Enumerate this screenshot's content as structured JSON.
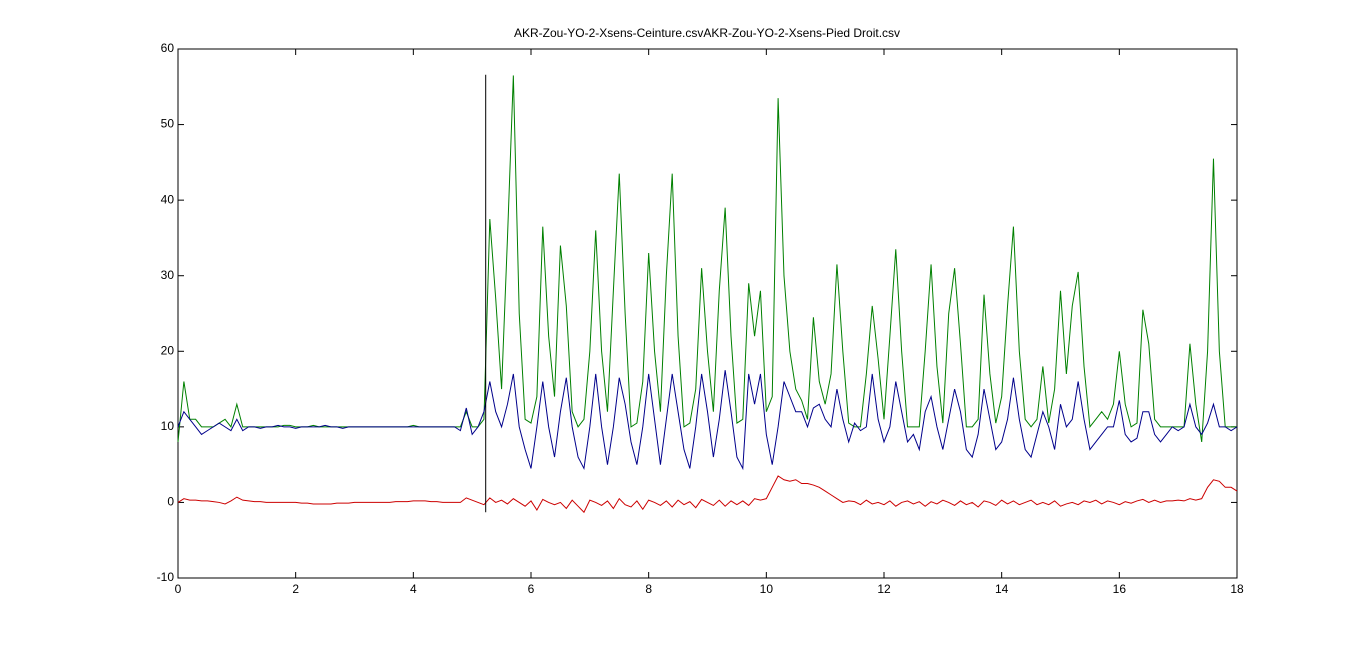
{
  "chart_data": {
    "type": "line",
    "title": "AKR-Zou-YO-2-Xsens-Ceinture.csvAKR-Zou-YO-2-Xsens-Pied Droit.csv",
    "xlim": [
      0,
      18
    ],
    "xticks": [
      0,
      2,
      4,
      6,
      8,
      10,
      12,
      14,
      16,
      18
    ],
    "ylim": [
      -10,
      60
    ],
    "yticks": [
      -10,
      0,
      10,
      20,
      30,
      40,
      50,
      60
    ],
    "grid": false,
    "vertical_line": {
      "x": 5.23,
      "y": [
        -1.3,
        56.6
      ]
    },
    "x": [
      0,
      0.1,
      0.2,
      0.3,
      0.4,
      0.5,
      0.6,
      0.7,
      0.8,
      0.9,
      1,
      1.1,
      1.2,
      1.3,
      1.4,
      1.5,
      1.6,
      1.7,
      1.8,
      1.9,
      2,
      2.1,
      2.2,
      2.3,
      2.4,
      2.5,
      2.6,
      2.7,
      2.8,
      2.9,
      3,
      3.1,
      3.2,
      3.3,
      3.4,
      3.5,
      3.6,
      3.7,
      3.8,
      3.9,
      4,
      4.1,
      4.2,
      4.3,
      4.4,
      4.5,
      4.6,
      4.7,
      4.8,
      4.9,
      5,
      5.1,
      5.2,
      5.3,
      5.4,
      5.5,
      5.6,
      5.7,
      5.8,
      5.9,
      6,
      6.1,
      6.2,
      6.3,
      6.4,
      6.5,
      6.6,
      6.7,
      6.8,
      6.9,
      7,
      7.1,
      7.2,
      7.3,
      7.4,
      7.5,
      7.6,
      7.7,
      7.8,
      7.9,
      8,
      8.1,
      8.2,
      8.3,
      8.4,
      8.5,
      8.6,
      8.7,
      8.8,
      8.9,
      9,
      9.1,
      9.2,
      9.3,
      9.4,
      9.5,
      9.6,
      9.7,
      9.8,
      9.9,
      10,
      10.1,
      10.2,
      10.3,
      10.4,
      10.5,
      10.6,
      10.7,
      10.8,
      10.9,
      11,
      11.1,
      11.2,
      11.3,
      11.4,
      11.5,
      11.6,
      11.7,
      11.8,
      11.9,
      12,
      12.1,
      12.2,
      12.3,
      12.4,
      12.5,
      12.6,
      12.7,
      12.8,
      12.9,
      13,
      13.1,
      13.2,
      13.3,
      13.4,
      13.5,
      13.6,
      13.7,
      13.8,
      13.9,
      14,
      14.1,
      14.2,
      14.3,
      14.4,
      14.5,
      14.6,
      14.7,
      14.8,
      14.9,
      15,
      15.1,
      15.2,
      15.3,
      15.4,
      15.5,
      15.6,
      15.7,
      15.8,
      15.9,
      16,
      16.1,
      16.2,
      16.3,
      16.4,
      16.5,
      16.6,
      16.7,
      16.8,
      16.9,
      17,
      17.1,
      17.2,
      17.3,
      17.4,
      17.5,
      17.6,
      17.7,
      17.8,
      17.9,
      18
    ],
    "series": [
      {
        "color": "#008000",
        "values": [
          8,
          16,
          11,
          11,
          10,
          10,
          10,
          10.5,
          11,
          10,
          13,
          10,
          10,
          10,
          10,
          10,
          10,
          10,
          10.2,
          10.2,
          10,
          10,
          10,
          10.2,
          10,
          10,
          10,
          10,
          10,
          10,
          10,
          10,
          10,
          10,
          10,
          10,
          10,
          10,
          10,
          10,
          10.2,
          10,
          10,
          10,
          10,
          10,
          10,
          10,
          10,
          12,
          10,
          10,
          11,
          37.5,
          27,
          15,
          35,
          56.5,
          25,
          11,
          10.5,
          14,
          36.5,
          22,
          14,
          34,
          26,
          12,
          10,
          11,
          20,
          36,
          20,
          12,
          28,
          43.5,
          25,
          10,
          10.5,
          16,
          33,
          20,
          12,
          30,
          43.5,
          22,
          10,
          10.5,
          15,
          31,
          20,
          12,
          28,
          39,
          22,
          10.5,
          11,
          29,
          22,
          28,
          12,
          14,
          53.5,
          30,
          20,
          15,
          13.5,
          11,
          24.5,
          16,
          13,
          17,
          31.5,
          20,
          10.5,
          10,
          10,
          17,
          26,
          19,
          11,
          22,
          33.5,
          20,
          10,
          10,
          10,
          20,
          31.5,
          18,
          10.5,
          25,
          31,
          21,
          10,
          10,
          11,
          27.5,
          17,
          10.5,
          14,
          26,
          36.5,
          20,
          11,
          10,
          11,
          18,
          10.5,
          15,
          28,
          17,
          26,
          30.5,
          18,
          10,
          11,
          12,
          11,
          13,
          20,
          13,
          10,
          10.5,
          25.5,
          21,
          11,
          10,
          10,
          10,
          10,
          10,
          21,
          13,
          8,
          20,
          45.5,
          20,
          10,
          10,
          10
        ]
      },
      {
        "color": "#00008b",
        "values": [
          10,
          12,
          11,
          10,
          9,
          9.5,
          10,
          10.5,
          10,
          9.5,
          11,
          9.5,
          10,
          10,
          9.8,
          10,
          10,
          10.2,
          10,
          10,
          9.8,
          10,
          10,
          10,
          10,
          10.2,
          10,
          10,
          9.8,
          10,
          10,
          10,
          10,
          10,
          10,
          10,
          10,
          10,
          10,
          10,
          10,
          10,
          10,
          10,
          10,
          10,
          10,
          10,
          9.5,
          12.5,
          9,
          10,
          12,
          16,
          12,
          10,
          13,
          17,
          10,
          7,
          4.5,
          10,
          16,
          10,
          6,
          12,
          16.5,
          10,
          6,
          4.5,
          10,
          17,
          10,
          5,
          10,
          16.5,
          13,
          8,
          5,
          10,
          17,
          11,
          5,
          11,
          17,
          12,
          7,
          4.5,
          10,
          17,
          12,
          6,
          11,
          17.5,
          12,
          6,
          4.5,
          17,
          13,
          17,
          9,
          5,
          10,
          16,
          14,
          12,
          12,
          10,
          12.5,
          13,
          11,
          10,
          15,
          11,
          8,
          10.5,
          9.5,
          10,
          17,
          11,
          8,
          10,
          16,
          12,
          8,
          9,
          7,
          12,
          14,
          10,
          7,
          11,
          15,
          12,
          7,
          6,
          9,
          15,
          11,
          7,
          8,
          11,
          16.5,
          11,
          7,
          6,
          9,
          12,
          10,
          7,
          13,
          10,
          11,
          16,
          11,
          7,
          8,
          9,
          10,
          10,
          13.5,
          9,
          8,
          8.5,
          12,
          12,
          9,
          8,
          9,
          10,
          9.5,
          10,
          13,
          10,
          9,
          10.5,
          13,
          10,
          10,
          9.5,
          10
        ]
      },
      {
        "color": "#cc0000",
        "values": [
          0,
          0.5,
          0.3,
          0.3,
          0.2,
          0.2,
          0.1,
          0,
          -0.2,
          0.2,
          0.7,
          0.3,
          0.2,
          0.1,
          0.1,
          0,
          0,
          0,
          0,
          0,
          0,
          -0.1,
          -0.1,
          -0.2,
          -0.2,
          -0.2,
          -0.2,
          -0.1,
          -0.1,
          -0.1,
          0,
          0,
          0,
          0,
          0,
          0,
          0,
          0.1,
          0.1,
          0.1,
          0.2,
          0.2,
          0.2,
          0.1,
          0.1,
          0,
          0,
          0,
          0,
          0.6,
          0.3,
          0,
          -0.3,
          0.6,
          0,
          0.3,
          -0.2,
          0.5,
          0,
          -0.5,
          0.2,
          -1,
          0.4,
          0,
          -0.3,
          0,
          -0.8,
          0.3,
          -0.5,
          -1.3,
          0.3,
          0,
          -0.4,
          0.2,
          -0.8,
          0.5,
          -0.3,
          -0.6,
          0.2,
          -0.9,
          0.3,
          0,
          -0.4,
          0.2,
          -0.6,
          0.3,
          -0.3,
          0.1,
          -0.7,
          0.4,
          0,
          -0.4,
          0.3,
          -0.5,
          0.2,
          -0.3,
          0.2,
          -0.4,
          0.5,
          0.3,
          0.5,
          2,
          3.5,
          3,
          2.8,
          3,
          2.5,
          2.5,
          2.3,
          2,
          1.5,
          1,
          0.5,
          0,
          0.2,
          0.1,
          -0.3,
          0.3,
          -0.2,
          0,
          -0.3,
          0.2,
          -0.5,
          0,
          0.2,
          -0.2,
          0.1,
          -0.5,
          0.1,
          -0.2,
          0.3,
          0,
          -0.4,
          0.2,
          -0.3,
          0,
          -0.6,
          0.2,
          0,
          -0.4,
          0.3,
          -0.2,
          0.2,
          -0.3,
          0,
          0.3,
          -0.3,
          0,
          -0.3,
          0.2,
          -0.5,
          -0.2,
          0,
          -0.3,
          0.2,
          0,
          0.3,
          -0.2,
          0.2,
          0,
          -0.3,
          0.1,
          -0.1,
          0.2,
          0.4,
          0,
          0.3,
          0,
          0.2,
          0.2,
          0.3,
          0.2,
          0.5,
          0.3,
          0.5,
          2,
          3,
          2.8,
          2,
          2,
          1.5
        ]
      }
    ]
  }
}
